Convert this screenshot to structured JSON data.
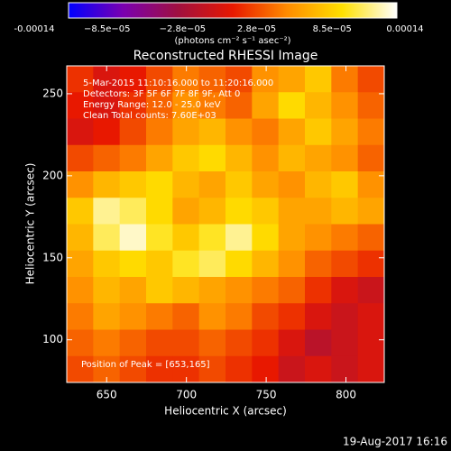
{
  "chart_data": {
    "type": "image",
    "title": "Reconstructed RHESSI Image",
    "x_label": "Heliocentric X (arcsec)",
    "y_label": "Heliocentric Y (arcsec)",
    "xlim": [
      625,
      824
    ],
    "xticks": [
      650,
      700,
      750,
      800
    ],
    "ylim": [
      74,
      267
    ],
    "yticks": [
      100,
      150,
      200,
      250
    ],
    "annotations": [
      "5-Mar-2015 11:10:16.000 to 11:20:16.000",
      "Detectors: 3F 5F 6F 7F 8F 9F, Att 0",
      "Energy Range: 12.0 - 25.0 keV",
      "Clean     Total counts: 7.60E+03"
    ],
    "peak_label": "Position of Peak = [653,165]",
    "footer": "19-Aug-2017 16:16",
    "colorbar": {
      "label": "(photons cm⁻² s⁻¹ asec⁻²)",
      "lim": [
        -0.00014,
        0.00014
      ],
      "ticks": [
        -0.00014,
        {
          "value": -8.5e-05,
          "label": "−8.5e−05"
        },
        {
          "value": -2.8e-05,
          "label": "−2.8e−05"
        },
        {
          "value": 2.8e-05,
          "label": "2.8e−05"
        },
        {
          "value": 8.5e-05,
          "label": "8.5e−05"
        },
        0.00014
      ]
    },
    "colormap": [
      "#0000ff",
      "#7a00b0",
      "#a01040",
      "#e81800",
      "#ff8c00",
      "#ffe000",
      "#ffffff"
    ],
    "z": [
      [
        1e-05,
        -1e-05,
        0,
        2e-05,
        4e-05,
        3e-05,
        2e-05,
        5e-05,
        6e-05,
        8e-05,
        4e-05,
        2e-05
      ],
      [
        0,
        -1e-05,
        1e-05,
        3e-05,
        5e-05,
        4e-05,
        3e-05,
        6e-05,
        9e-05,
        7e-05,
        5e-05,
        3e-05
      ],
      [
        -1e-05,
        0,
        2e-05,
        4e-05,
        6e-05,
        7e-05,
        5e-05,
        4e-05,
        6e-05,
        8e-05,
        6e-05,
        4e-05
      ],
      [
        2e-05,
        3e-05,
        4e-05,
        6e-05,
        8e-05,
        9e-05,
        7e-05,
        5e-05,
        7e-05,
        6e-05,
        5e-05,
        3e-05
      ],
      [
        5e-05,
        7e-05,
        8e-05,
        9e-05,
        7e-05,
        6e-05,
        8e-05,
        6e-05,
        5e-05,
        7e-05,
        8e-05,
        5e-05
      ],
      [
        8e-05,
        0.00012,
        0.00011,
        9e-05,
        6e-05,
        7e-05,
        9e-05,
        8e-05,
        6e-05,
        6e-05,
        7e-05,
        6e-05
      ],
      [
        7e-05,
        0.00011,
        0.00013,
        0.0001,
        8e-05,
        0.0001,
        0.00012,
        9e-05,
        6e-05,
        5e-05,
        4e-05,
        3e-05
      ],
      [
        6e-05,
        8e-05,
        9e-05,
        8e-05,
        0.0001,
        0.00011,
        9e-05,
        7e-05,
        5e-05,
        3e-05,
        2e-05,
        1e-05
      ],
      [
        5e-05,
        7e-05,
        6e-05,
        8e-05,
        7e-05,
        6e-05,
        5e-05,
        4e-05,
        3e-05,
        1e-05,
        -1e-05,
        -2e-05
      ],
      [
        4e-05,
        6e-05,
        5e-05,
        4e-05,
        3e-05,
        5e-05,
        4e-05,
        2e-05,
        1e-05,
        -1e-05,
        -2e-05,
        -1e-05
      ],
      [
        3e-05,
        4e-05,
        3e-05,
        2e-05,
        2e-05,
        3e-05,
        2e-05,
        1e-05,
        -1e-05,
        -3e-05,
        -2e-05,
        -1e-05
      ],
      [
        2e-05,
        3e-05,
        2e-05,
        1e-05,
        1e-05,
        2e-05,
        1e-05,
        0,
        -2e-05,
        -1e-05,
        -2e-05,
        -1e-05
      ]
    ]
  }
}
